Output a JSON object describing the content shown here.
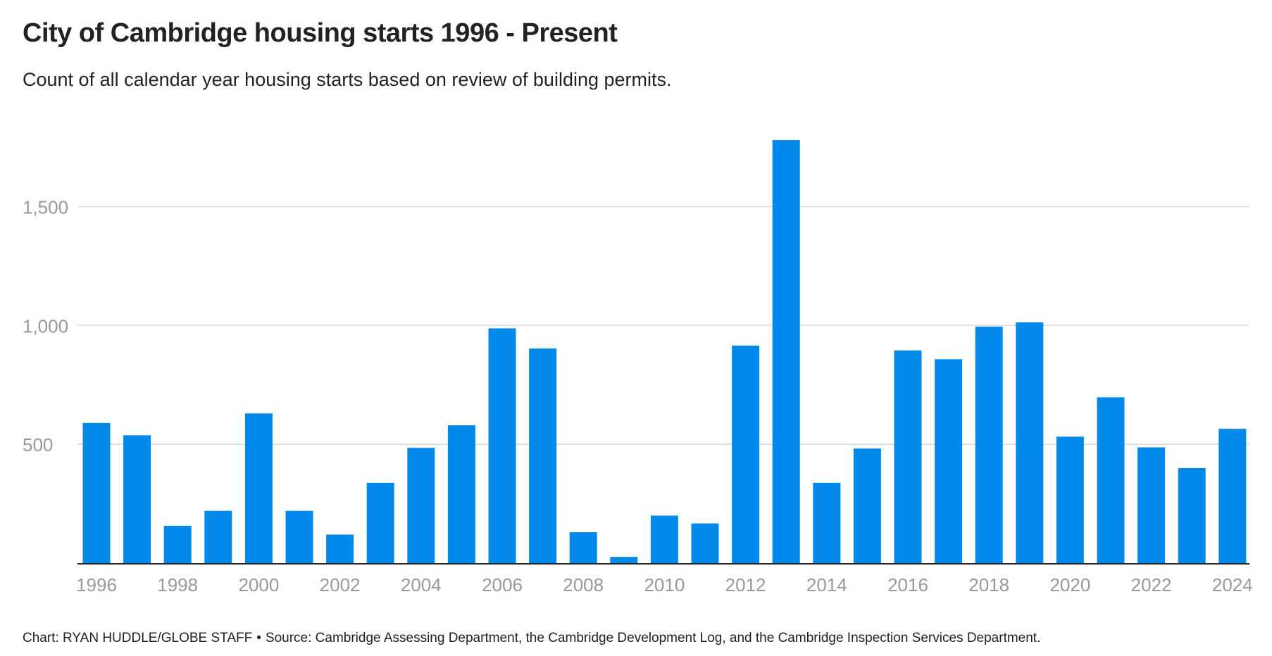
{
  "header": {
    "title": "City of Cambridge housing starts 1996 - Present",
    "subtitle": "Count of all calendar year housing starts based on review of building permits."
  },
  "footer": {
    "credit": "Chart: RYAN HUDDLE/GLOBE STAFF",
    "separator": "•",
    "source": "Source: Cambridge Assessing Department, the Cambridge Development Log, and the Cambridge Inspection Services Department."
  },
  "colors": {
    "bar": "#0389ea",
    "grid": "#dddddd",
    "axis": "#222222",
    "tick_label": "#999999"
  },
  "chart_data": {
    "type": "bar",
    "title": "City of Cambridge housing starts 1996 - Present",
    "subtitle": "Count of all calendar year housing starts based on review of building permits.",
    "xlabel": "",
    "ylabel": "",
    "categories": [
      "1996",
      "1997",
      "1998",
      "1999",
      "2000",
      "2001",
      "2002",
      "2003",
      "2004",
      "2005",
      "2006",
      "2007",
      "2008",
      "2009",
      "2010",
      "2011",
      "2012",
      "2013",
      "2014",
      "2015",
      "2016",
      "2017",
      "2018",
      "2019",
      "2020",
      "2021",
      "2022",
      "2023",
      "2024"
    ],
    "values": [
      590,
      538,
      157,
      220,
      630,
      220,
      120,
      338,
      485,
      580,
      988,
      903,
      130,
      26,
      200,
      167,
      915,
      1780,
      338,
      482,
      895,
      858,
      995,
      1013,
      532,
      698,
      487,
      400,
      565
    ],
    "ylim": [
      0,
      1850
    ],
    "yticks": [
      500,
      1000,
      1500
    ],
    "ytick_labels": [
      "500",
      "1,000",
      "1,500"
    ],
    "xtick_labels": [
      "1996",
      "1998",
      "2000",
      "2002",
      "2004",
      "2006",
      "2008",
      "2010",
      "2012",
      "2014",
      "2016",
      "2018",
      "2020",
      "2022",
      "2024"
    ],
    "grid": true,
    "legend": "none"
  }
}
